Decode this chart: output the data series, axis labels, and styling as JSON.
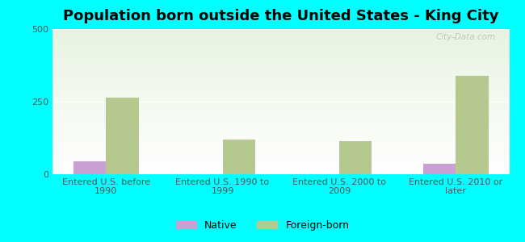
{
  "title": "Population born outside the United States - King City",
  "categories": [
    "Entered U.S. before\n1990",
    "Entered U.S. 1990 to\n1999",
    "Entered U.S. 2000 to\n2009",
    "Entered U.S. 2010 or\nlater"
  ],
  "native_values": [
    45,
    0,
    0,
    35
  ],
  "foreign_values": [
    263,
    120,
    115,
    340
  ],
  "native_color": "#c99fd4",
  "foreign_color": "#b5c98e",
  "background_color": "#00ffff",
  "ylim": [
    0,
    500
  ],
  "yticks": [
    0,
    250,
    500
  ],
  "bar_width": 0.28,
  "title_fontsize": 13,
  "tick_fontsize": 8,
  "legend_fontsize": 9,
  "watermark": "City-Data.com"
}
